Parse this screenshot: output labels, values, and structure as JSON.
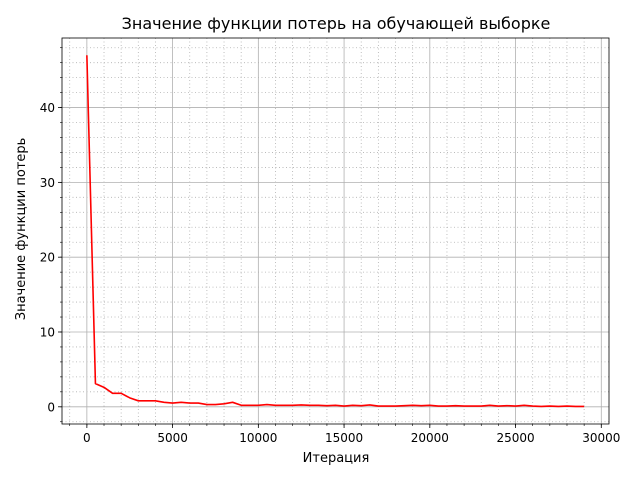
{
  "chart_data": {
    "type": "line",
    "title": "Значение функции потерь на обучающей выборке",
    "xlabel": "Итерация",
    "ylabel": "Значение функции потерь",
    "xlim": [
      -1450,
      30450
    ],
    "ylim": [
      -2.3,
      49.3
    ],
    "x_ticks": [
      0,
      5000,
      10000,
      15000,
      20000,
      25000,
      30000
    ],
    "y_ticks": [
      0,
      10,
      20,
      30,
      40
    ],
    "x_minor_step": 1000,
    "y_minor_step": 2,
    "grid": {
      "major": true,
      "minor": true
    },
    "series": [
      {
        "color": "#ff0000",
        "x": [
          0,
          500,
          1000,
          1500,
          2000,
          2500,
          3000,
          3500,
          4000,
          4500,
          5000,
          5500,
          6000,
          6500,
          7000,
          7500,
          8000,
          8500,
          9000,
          9500,
          10000,
          10500,
          11000,
          11500,
          12000,
          12500,
          13000,
          13500,
          14000,
          14500,
          15000,
          15500,
          16000,
          16500,
          17000,
          17500,
          18000,
          18500,
          19000,
          19500,
          20000,
          20500,
          21000,
          21500,
          22000,
          22500,
          23000,
          23500,
          24000,
          24500,
          25000,
          25500,
          26000,
          26500,
          27000,
          27500,
          28000,
          28500,
          29000
        ],
        "y": [
          47.0,
          3.1,
          2.6,
          1.8,
          1.8,
          1.2,
          0.8,
          0.8,
          0.8,
          0.6,
          0.5,
          0.6,
          0.5,
          0.5,
          0.3,
          0.3,
          0.4,
          0.6,
          0.2,
          0.2,
          0.2,
          0.3,
          0.2,
          0.2,
          0.2,
          0.25,
          0.2,
          0.2,
          0.15,
          0.2,
          0.1,
          0.2,
          0.15,
          0.25,
          0.1,
          0.1,
          0.1,
          0.15,
          0.2,
          0.15,
          0.2,
          0.1,
          0.1,
          0.15,
          0.1,
          0.1,
          0.1,
          0.2,
          0.1,
          0.15,
          0.1,
          0.2,
          0.1,
          0.05,
          0.1,
          0.05,
          0.1,
          0.05,
          0.05
        ]
      }
    ]
  }
}
